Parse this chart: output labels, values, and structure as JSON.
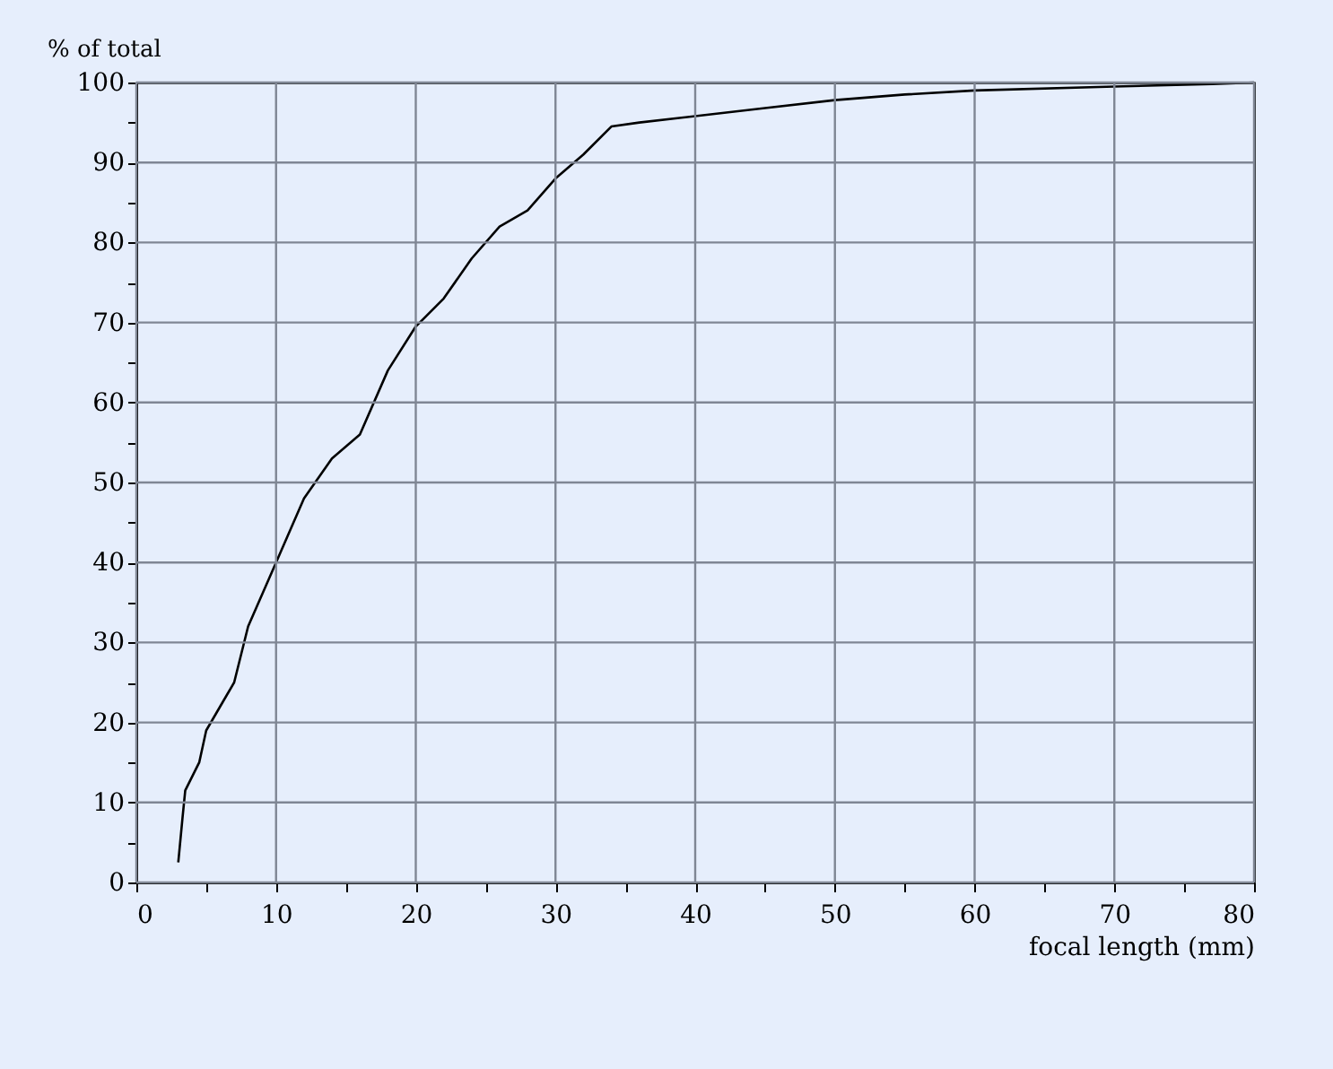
{
  "chart_data": {
    "type": "line",
    "xlabel": "focal length (mm)",
    "ylabel": "% of total",
    "x": [
      3,
      3.3,
      3.5,
      4.5,
      5,
      6,
      7,
      8,
      10,
      11,
      12,
      14,
      16,
      18,
      20,
      22,
      24,
      26,
      28,
      30,
      32,
      34,
      36,
      40,
      45,
      50,
      55,
      60,
      70,
      77,
      80
    ],
    "series": [
      {
        "color": "#000000",
        "values": [
          2.5,
          8,
          11.5,
          15,
          19,
          22,
          25,
          32,
          40,
          44,
          48,
          53,
          56,
          64,
          69.5,
          73,
          78,
          82,
          84,
          88,
          91,
          94.5,
          95,
          95.8,
          96.8,
          97.8,
          98.5,
          99,
          99.5,
          99.8,
          100
        ]
      }
    ],
    "xlim": [
      0,
      80
    ],
    "ylim": [
      0,
      100
    ],
    "xticks": [
      0,
      {
        "value": 5,
        "label": null
      },
      10,
      {
        "value": 15,
        "label": null
      },
      20,
      {
        "value": 25,
        "label": null
      },
      30,
      {
        "value": 35,
        "label": null
      },
      40,
      {
        "value": 45,
        "label": null
      },
      50,
      {
        "value": 55,
        "label": null
      },
      60,
      {
        "value": 65,
        "label": null
      },
      70,
      {
        "value": 75,
        "label": null
      },
      80
    ],
    "yticks": [
      0,
      {
        "value": 5,
        "label": null
      },
      10,
      {
        "value": 15,
        "label": null
      },
      20,
      {
        "value": 25,
        "label": null
      },
      30,
      {
        "value": 35,
        "label": null
      },
      40,
      {
        "value": 45,
        "label": null
      },
      50,
      {
        "value": 55,
        "label": null
      },
      60,
      {
        "value": 65,
        "label": null
      },
      70,
      {
        "value": 75,
        "label": null
      },
      80,
      {
        "value": 85,
        "label": null
      },
      90,
      {
        "value": 95,
        "label": null
      },
      100
    ],
    "grid": true,
    "marker": "none",
    "line_style": "solid"
  }
}
